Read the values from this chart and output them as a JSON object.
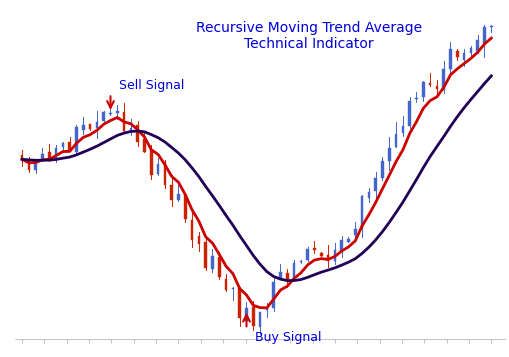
{
  "title_line1": "Recursive Moving Trend Average",
  "title_line2": "Technical Indicator",
  "title_color": "#0000dd",
  "title_fontsize": 10,
  "sell_signal_text": "Sell Signal",
  "buy_signal_text": "Buy Signal",
  "signal_color": "#0000dd",
  "arrow_color": "#cc0000",
  "background_color": "#ffffff",
  "candle_up_color": "#4466cc",
  "candle_down_color": "#cc2200",
  "line1_color": "#cc0000",
  "line2_color": "#220055",
  "n_candles": 70,
  "seed": 7,
  "figwidth": 5.1,
  "figheight": 3.57,
  "dpi": 100
}
